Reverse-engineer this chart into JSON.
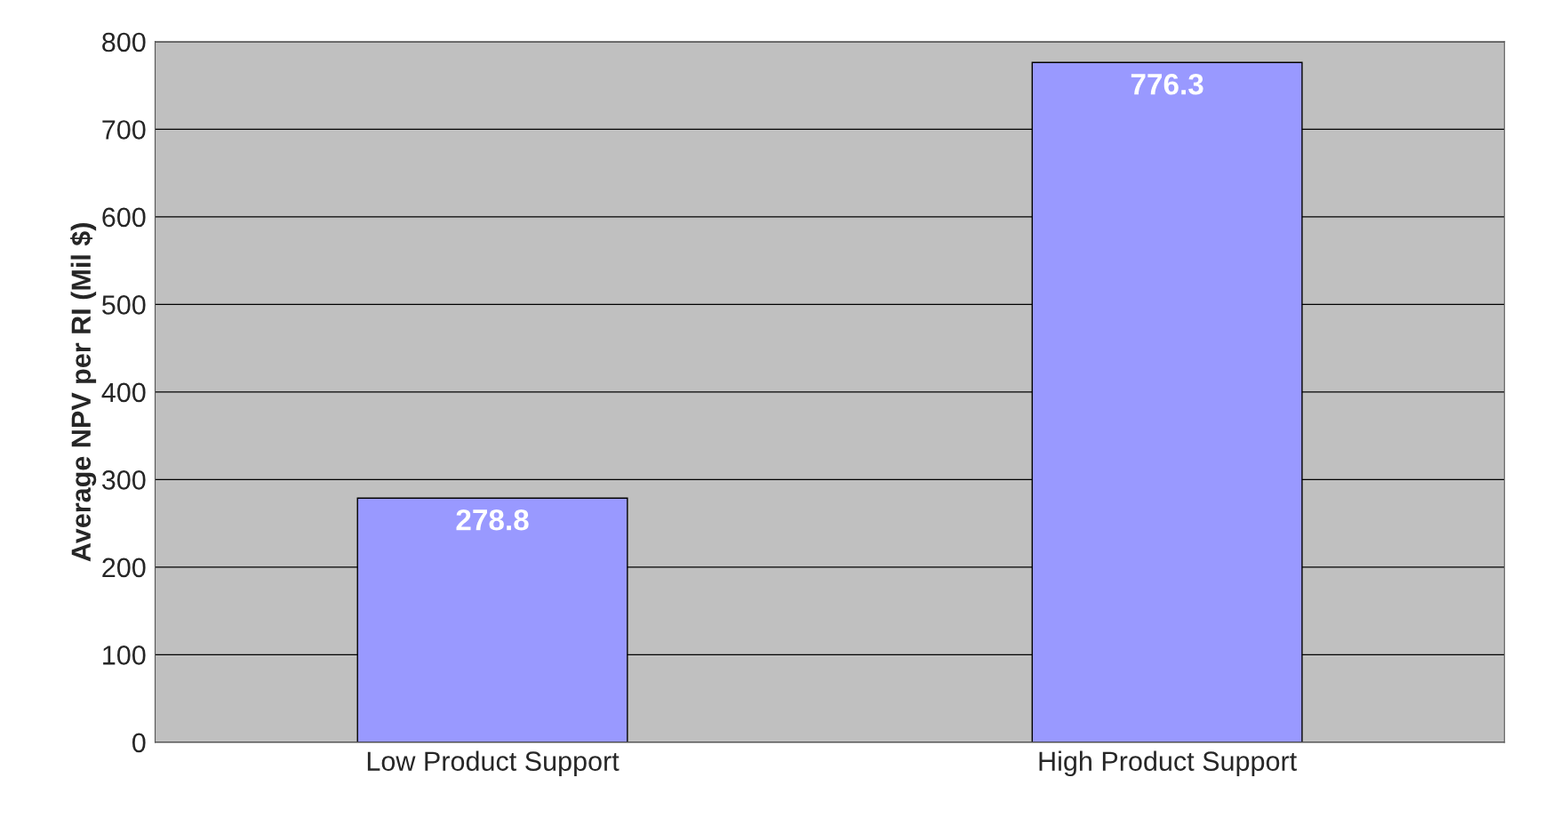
{
  "chart_data": {
    "type": "bar",
    "ylabel": "Average NPV per RI (Mil $)",
    "categories": [
      "Low Product Support",
      "High Product Support"
    ],
    "values": [
      278.8,
      776.3
    ],
    "color": "#9999ff",
    "ylim": [
      0,
      800
    ],
    "yticks": [
      0,
      100,
      200,
      300,
      400,
      500,
      600,
      700,
      800
    ],
    "grid": "y",
    "data_labels": true
  }
}
